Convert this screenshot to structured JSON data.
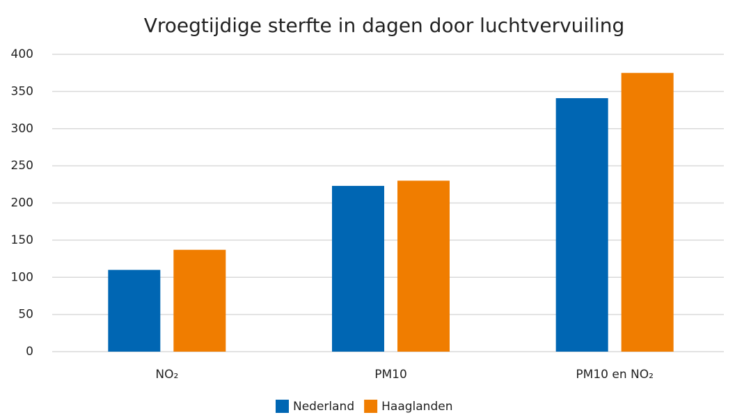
{
  "chart_data": {
    "type": "bar",
    "title": "Vroegtijdige sterfte in dagen door luchtvervuiling",
    "categories": [
      "NO₂",
      "PM10",
      "PM10 en NO₂"
    ],
    "series": [
      {
        "name": "Nederland",
        "color": "#0066b3",
        "values": [
          110,
          223,
          341
        ]
      },
      {
        "name": "Haaglanden",
        "color": "#f07d00",
        "values": [
          137,
          230,
          375
        ]
      }
    ],
    "ylim": [
      0,
      400
    ],
    "yticks": [
      0,
      50,
      100,
      150,
      200,
      250,
      300,
      350,
      400
    ],
    "grid": true,
    "legend": "bottom"
  }
}
